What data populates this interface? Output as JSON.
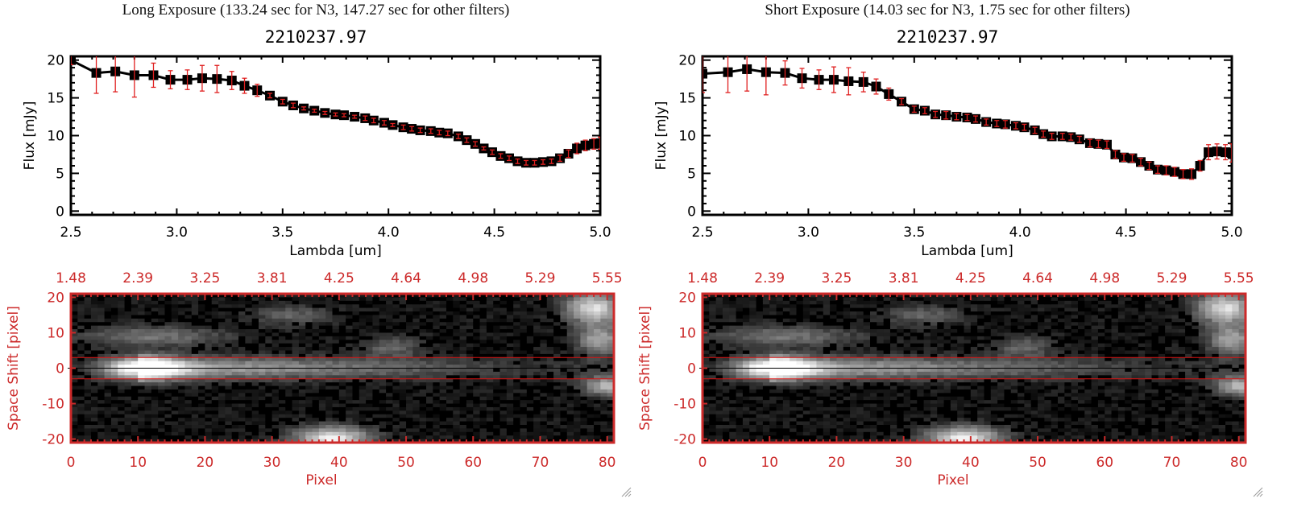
{
  "panels": [
    {
      "id": "long",
      "exposure_title": "Long Exposure (133.24 sec for N3, 147.27 sec for other filters)",
      "object_title": "2210237.97"
    },
    {
      "id": "short",
      "exposure_title": "Short Exposure (14.03 sec for N3, 1.75 sec for other filters)",
      "object_title": "2210237.97"
    }
  ],
  "colors": {
    "spectrum_line": "#000000",
    "error_bar": "#e02020",
    "image_axis": "#cc2a2a",
    "aperture_line": "#e01010"
  },
  "chart_data": [
    {
      "type": "line",
      "panel": "long",
      "title": "2210237.97",
      "xlabel": "Lambda [um]",
      "ylabel": "Flux [mJy]",
      "xlim": [
        2.5,
        5.0
      ],
      "ylim": [
        -0.5,
        20.5
      ],
      "xticks": [
        "2.5",
        "3.0",
        "3.5",
        "4.0",
        "4.5",
        "5.0"
      ],
      "xtick_values": [
        2.5,
        3.0,
        3.5,
        4.0,
        4.5,
        5.0
      ],
      "yticks": [
        "0",
        "5",
        "10",
        "15",
        "20"
      ],
      "ytick_values": [
        0,
        5,
        10,
        15,
        20
      ],
      "grid": false,
      "x": [
        2.5,
        2.62,
        2.71,
        2.8,
        2.89,
        2.97,
        3.05,
        3.12,
        3.19,
        3.26,
        3.32,
        3.38,
        3.44,
        3.5,
        3.55,
        3.6,
        3.65,
        3.7,
        3.75,
        3.79,
        3.84,
        3.89,
        3.93,
        3.98,
        4.02,
        4.07,
        4.11,
        4.15,
        4.2,
        4.24,
        4.28,
        4.33,
        4.37,
        4.41,
        4.45,
        4.49,
        4.53,
        4.57,
        4.61,
        4.65,
        4.69,
        4.73,
        4.77,
        4.81,
        4.85,
        4.89,
        4.93,
        4.97,
        5.0
      ],
      "y": [
        20.0,
        18.3,
        18.5,
        18.0,
        18.0,
        17.4,
        17.4,
        17.6,
        17.5,
        17.3,
        16.6,
        16.0,
        15.3,
        14.5,
        14.0,
        13.6,
        13.3,
        13.0,
        12.8,
        12.7,
        12.5,
        12.3,
        12.0,
        11.7,
        11.4,
        11.1,
        10.9,
        10.7,
        10.6,
        10.4,
        10.3,
        9.9,
        9.4,
        8.9,
        8.3,
        7.8,
        7.3,
        7.0,
        6.6,
        6.4,
        6.4,
        6.5,
        6.6,
        7.0,
        7.6,
        8.3,
        8.7,
        8.9,
        9.0
      ],
      "yerr": [
        0.6,
        2.7,
        2.7,
        2.9,
        1.6,
        1.2,
        1.3,
        1.7,
        1.8,
        1.2,
        1.0,
        0.8,
        0.3,
        0.3,
        0.3,
        0.2,
        0.2,
        0.2,
        0.2,
        0.2,
        0.2,
        0.3,
        0.3,
        0.3,
        0.2,
        0.3,
        0.3,
        0.3,
        0.3,
        0.3,
        0.3,
        0.3,
        0.3,
        0.3,
        0.2,
        0.3,
        0.3,
        0.3,
        0.3,
        0.3,
        0.3,
        0.3,
        0.3,
        0.4,
        0.5,
        0.7,
        0.7,
        0.7,
        0.8
      ]
    },
    {
      "type": "line",
      "panel": "short",
      "title": "2210237.97",
      "xlabel": "Lambda [um]",
      "ylabel": "Flux [mJy]",
      "xlim": [
        2.5,
        5.0
      ],
      "ylim": [
        -0.5,
        20.5
      ],
      "xticks": [
        "2.5",
        "3.0",
        "3.5",
        "4.0",
        "4.5",
        "5.0"
      ],
      "xtick_values": [
        2.5,
        3.0,
        3.5,
        4.0,
        4.5,
        5.0
      ],
      "yticks": [
        "0",
        "5",
        "10",
        "15",
        "20"
      ],
      "ytick_values": [
        0,
        5,
        10,
        15,
        20
      ],
      "grid": false,
      "x": [
        2.5,
        2.62,
        2.71,
        2.8,
        2.89,
        2.97,
        3.05,
        3.12,
        3.19,
        3.26,
        3.32,
        3.38,
        3.44,
        3.5,
        3.55,
        3.6,
        3.65,
        3.7,
        3.75,
        3.79,
        3.84,
        3.89,
        3.93,
        3.98,
        4.02,
        4.07,
        4.11,
        4.15,
        4.2,
        4.24,
        4.28,
        4.33,
        4.37,
        4.41,
        4.45,
        4.49,
        4.53,
        4.57,
        4.61,
        4.65,
        4.69,
        4.73,
        4.77,
        4.81,
        4.85,
        4.89,
        4.93,
        4.97,
        5.0
      ],
      "y": [
        18.2,
        18.4,
        18.8,
        18.4,
        18.3,
        17.6,
        17.4,
        17.4,
        17.2,
        17.1,
        16.5,
        15.5,
        14.5,
        13.5,
        13.3,
        12.8,
        12.7,
        12.5,
        12.4,
        12.2,
        11.8,
        11.6,
        11.5,
        11.3,
        11.1,
        10.7,
        10.2,
        9.9,
        9.9,
        9.8,
        9.5,
        9.0,
        8.9,
        8.8,
        7.5,
        7.1,
        7.0,
        6.5,
        6.0,
        5.5,
        5.4,
        5.2,
        4.9,
        4.9,
        6.0,
        7.8,
        7.9,
        7.8,
        7.7
      ],
      "yerr": [
        2.5,
        2.7,
        2.9,
        3.0,
        1.6,
        1.3,
        1.3,
        1.7,
        1.8,
        1.3,
        1.0,
        0.8,
        0.4,
        0.4,
        0.4,
        0.4,
        0.5,
        0.4,
        0.4,
        0.4,
        0.4,
        0.4,
        0.5,
        0.4,
        0.4,
        0.4,
        0.4,
        0.4,
        0.4,
        0.4,
        0.4,
        0.5,
        0.5,
        0.5,
        0.5,
        0.5,
        0.5,
        0.5,
        0.5,
        0.5,
        0.6,
        0.6,
        0.6,
        0.7,
        0.7,
        1.0,
        1.0,
        1.0,
        1.2
      ]
    },
    {
      "type": "heatmap",
      "panel": "long",
      "xlabel": "Pixel",
      "ylabel": "Space Shift [pixel]",
      "xlim": [
        0,
        81
      ],
      "ylim": [
        -21,
        21
      ],
      "xticks": [
        "0",
        "10",
        "20",
        "30",
        "40",
        "50",
        "60",
        "70",
        "80"
      ],
      "xtick_values": [
        0,
        10,
        20,
        30,
        40,
        50,
        60,
        70,
        80
      ],
      "top_xticks": [
        "1.48",
        "2.39",
        "3.25",
        "3.81",
        "4.25",
        "4.64",
        "4.98",
        "5.29",
        "5.55"
      ],
      "yticks": [
        "-20",
        "-10",
        "0",
        "10",
        "20"
      ],
      "ytick_values": [
        -20,
        -10,
        0,
        10,
        20
      ],
      "aperture_lines": [
        -3,
        3
      ],
      "center_line": 0,
      "sources": [
        {
          "x": 10,
          "y": 0,
          "brightness": 1.0,
          "sx": 4,
          "sy": 2.2,
          "tail_to": 68
        },
        {
          "x": 78,
          "y": 17,
          "brightness": 0.78,
          "sx": 3,
          "sy": 3
        },
        {
          "x": 79,
          "y": 8,
          "brightness": 0.55,
          "sx": 2.5,
          "sy": 3
        },
        {
          "x": 80,
          "y": -5,
          "brightness": 0.6,
          "sx": 2.5,
          "sy": 2
        },
        {
          "x": 39,
          "y": -20,
          "brightness": 0.85,
          "sx": 4,
          "sy": 2.5
        },
        {
          "x": 12,
          "y": 9,
          "brightness": 0.35,
          "sx": 8,
          "sy": 2
        },
        {
          "x": 33,
          "y": 15,
          "brightness": 0.28,
          "sx": 4,
          "sy": 2
        },
        {
          "x": 48,
          "y": 6,
          "brightness": 0.3,
          "sx": 3,
          "sy": 2
        }
      ]
    },
    {
      "type": "heatmap",
      "panel": "short",
      "xlabel": "Pixel",
      "ylabel": "Space Shift [pixel]",
      "xlim": [
        0,
        81
      ],
      "ylim": [
        -21,
        21
      ],
      "xticks": [
        "0",
        "10",
        "20",
        "30",
        "40",
        "50",
        "60",
        "70",
        "80"
      ],
      "xtick_values": [
        0,
        10,
        20,
        30,
        40,
        50,
        60,
        70,
        80
      ],
      "top_xticks": [
        "1.48",
        "2.39",
        "3.25",
        "3.81",
        "4.25",
        "4.64",
        "4.98",
        "5.29",
        "5.55"
      ],
      "yticks": [
        "-20",
        "-10",
        "0",
        "10",
        "20"
      ],
      "ytick_values": [
        -20,
        -10,
        0,
        10,
        20
      ],
      "aperture_lines": [
        -3,
        3
      ],
      "center_line": 0,
      "sources": [
        {
          "x": 10,
          "y": 0,
          "brightness": 1.0,
          "sx": 4,
          "sy": 2.2,
          "tail_to": 68
        },
        {
          "x": 78,
          "y": 17,
          "brightness": 0.78,
          "sx": 3,
          "sy": 3
        },
        {
          "x": 79,
          "y": 8,
          "brightness": 0.55,
          "sx": 2.5,
          "sy": 3
        },
        {
          "x": 80,
          "y": -5,
          "brightness": 0.6,
          "sx": 2.5,
          "sy": 2
        },
        {
          "x": 39,
          "y": -20,
          "brightness": 0.85,
          "sx": 4,
          "sy": 2.5
        },
        {
          "x": 12,
          "y": 9,
          "brightness": 0.35,
          "sx": 8,
          "sy": 2
        },
        {
          "x": 33,
          "y": 15,
          "brightness": 0.28,
          "sx": 4,
          "sy": 2
        },
        {
          "x": 48,
          "y": 6,
          "brightness": 0.3,
          "sx": 3,
          "sy": 2
        }
      ]
    }
  ]
}
